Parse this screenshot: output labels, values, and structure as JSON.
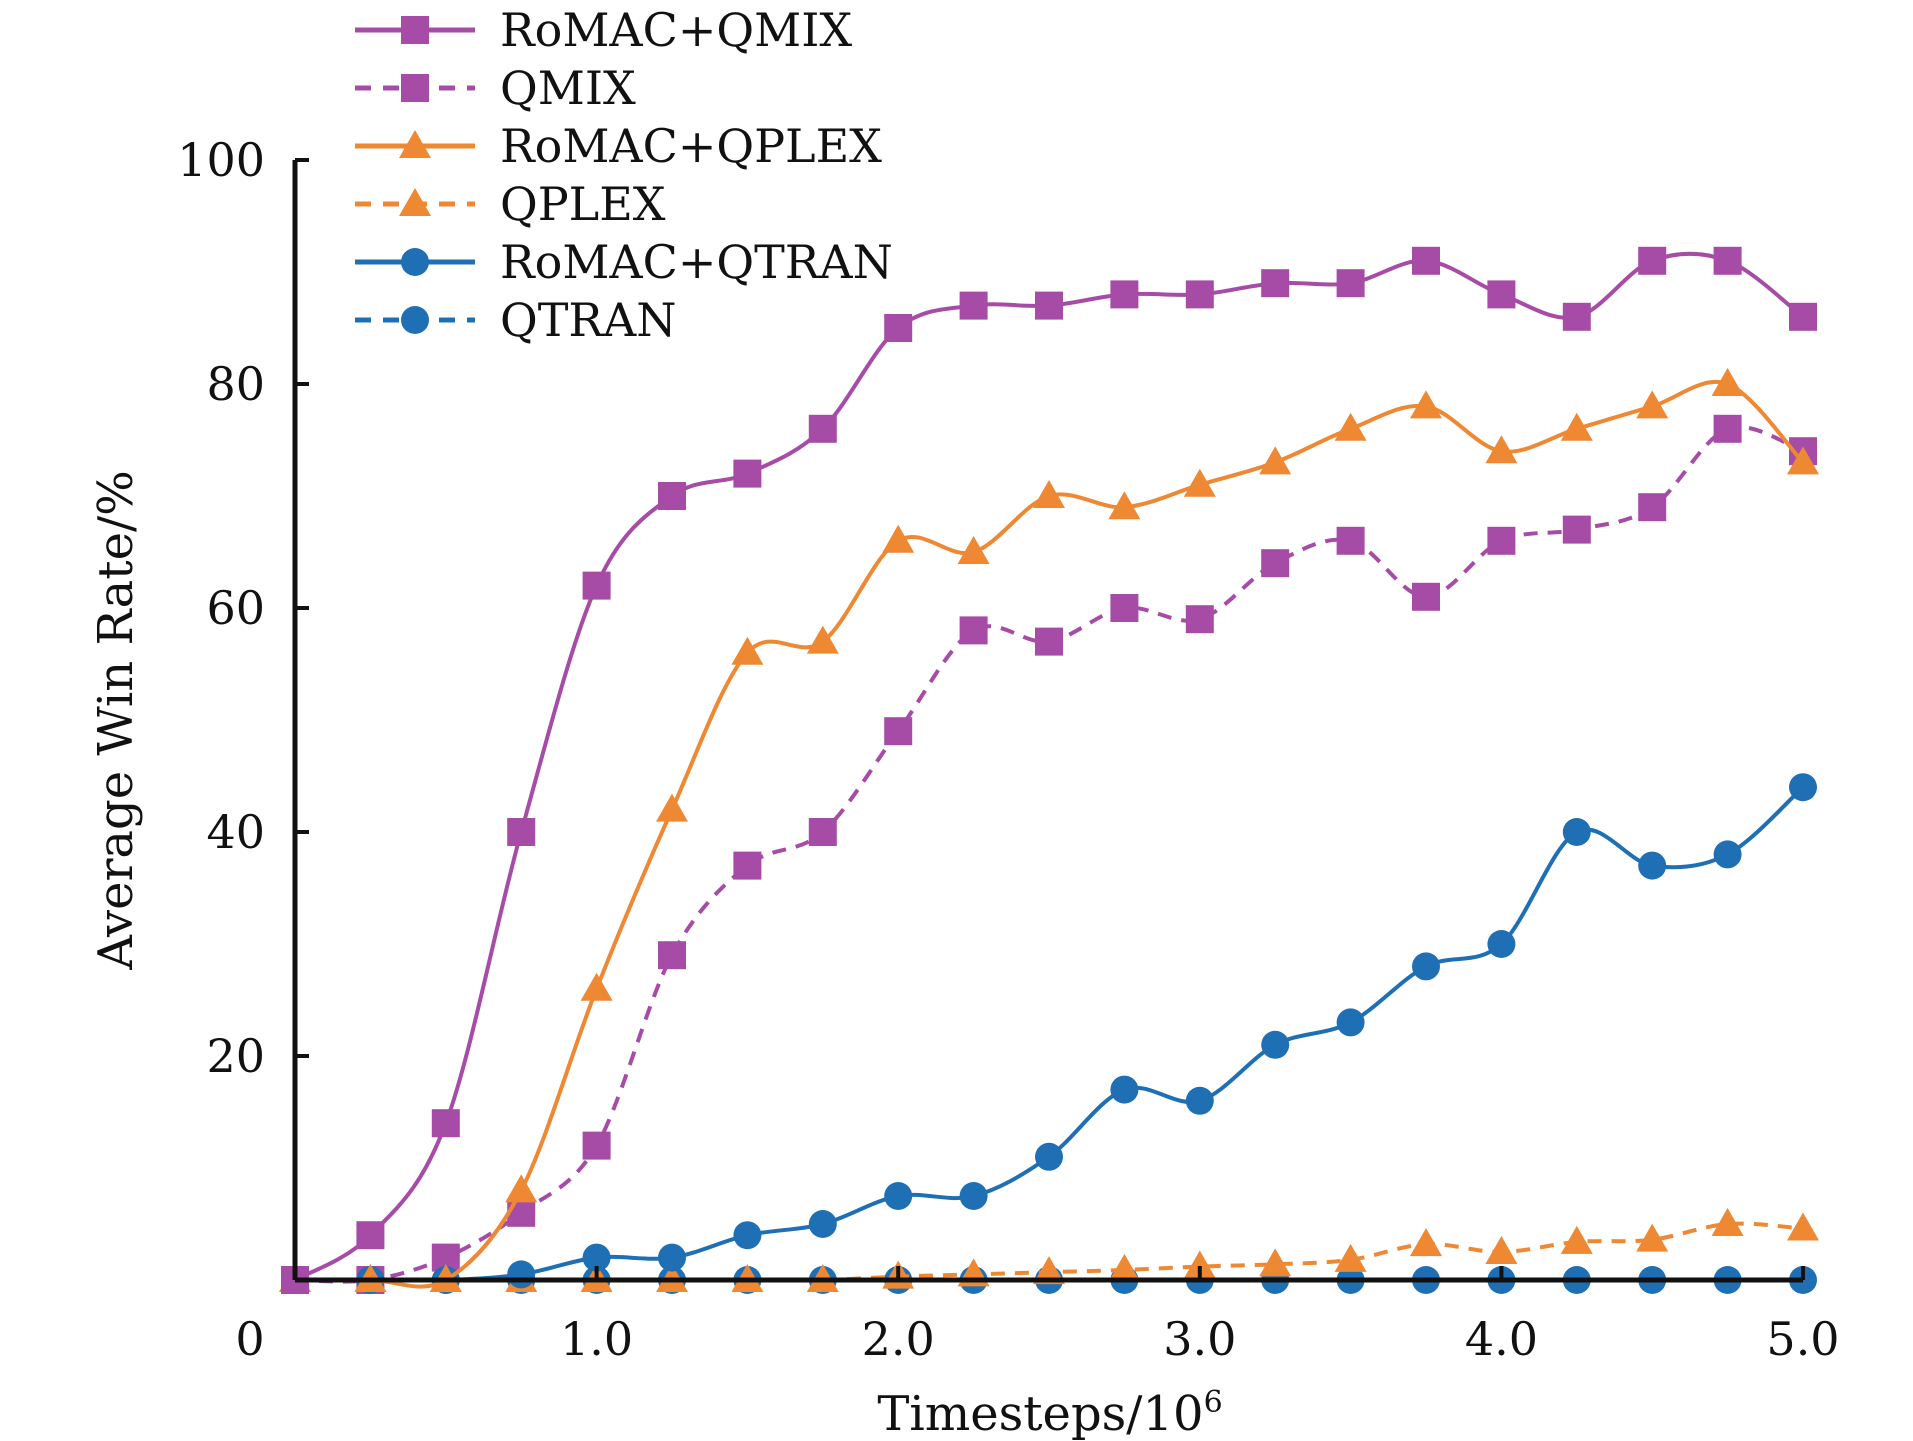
{
  "chart_data": {
    "type": "line",
    "xlabel": "Timesteps/10",
    "xlabel_sup": "6",
    "ylabel": "Average Win Rate/%",
    "xlim": [
      0,
      5.0
    ],
    "ylim": [
      0,
      100
    ],
    "x_ticks": [
      0,
      1.0,
      2.0,
      3.0,
      4.0,
      5.0
    ],
    "x_tick_labels": [
      "0",
      "1.0",
      "2.0",
      "3.0",
      "4.0",
      "5.0"
    ],
    "y_ticks": [
      20,
      40,
      60,
      80,
      100
    ],
    "y_tick_labels": [
      "20",
      "40",
      "60",
      "80",
      "100"
    ],
    "grid": false,
    "legend_position": "top-left, above plot",
    "series": [
      {
        "name": "RoMAC+QMIX",
        "color": "#A64CA6",
        "marker": "square",
        "line": "solid",
        "x": [
          0.0,
          0.25,
          0.5,
          0.75,
          1.0,
          1.25,
          1.5,
          1.75,
          2.0,
          2.25,
          2.5,
          2.75,
          3.0,
          3.25,
          3.5,
          3.75,
          4.0,
          4.25,
          4.5,
          4.75,
          5.0
        ],
        "y": [
          0,
          4,
          14,
          40,
          62,
          70,
          72,
          76,
          85,
          87,
          87,
          88,
          88,
          89,
          89,
          91,
          88,
          86,
          91,
          91,
          86
        ]
      },
      {
        "name": "QMIX",
        "color": "#A64CA6",
        "marker": "square",
        "line": "dashed",
        "x": [
          0.0,
          0.25,
          0.5,
          0.75,
          1.0,
          1.25,
          1.5,
          1.75,
          2.0,
          2.25,
          2.5,
          2.75,
          3.0,
          3.25,
          3.5,
          3.75,
          4.0,
          4.25,
          4.5,
          4.75,
          5.0
        ],
        "y": [
          0,
          0,
          2,
          6,
          12,
          29,
          37,
          40,
          49,
          58,
          57,
          60,
          59,
          64,
          66,
          61,
          66,
          67,
          69,
          76,
          74
        ]
      },
      {
        "name": "RoMAC+QPLEX",
        "color": "#EE8833",
        "marker": "triangle",
        "line": "solid",
        "x": [
          0.0,
          0.25,
          0.5,
          0.75,
          1.0,
          1.25,
          1.5,
          1.75,
          2.0,
          2.25,
          2.5,
          2.75,
          3.0,
          3.25,
          3.5,
          3.75,
          4.0,
          4.25,
          4.5,
          4.75,
          5.0
        ],
        "y": [
          0,
          0,
          0,
          8,
          26,
          42,
          56,
          57,
          66,
          65,
          70,
          69,
          71,
          73,
          76,
          78,
          74,
          76,
          78,
          80,
          73
        ]
      },
      {
        "name": "QPLEX",
        "color": "#EE8833",
        "marker": "triangle",
        "line": "dashed",
        "x": [
          0.0,
          0.25,
          0.5,
          0.75,
          1.0,
          1.25,
          1.5,
          1.75,
          2.0,
          2.25,
          2.5,
          2.75,
          3.0,
          3.25,
          3.5,
          3.75,
          4.0,
          4.25,
          4.5,
          4.75,
          5.0
        ],
        "y": [
          0,
          0,
          0,
          0,
          0,
          0,
          0,
          0,
          0.3,
          0.5,
          0.7,
          0.9,
          1.2,
          1.4,
          1.8,
          3.2,
          2.5,
          3.4,
          3.6,
          5,
          4.6
        ]
      },
      {
        "name": "RoMAC+QTRAN",
        "color": "#1F6FB4",
        "marker": "circle",
        "line": "solid",
        "x": [
          0.0,
          0.25,
          0.5,
          0.75,
          1.0,
          1.25,
          1.5,
          1.75,
          2.0,
          2.25,
          2.5,
          2.75,
          3.0,
          3.25,
          3.5,
          3.75,
          4.0,
          4.25,
          4.5,
          4.75,
          5.0
        ],
        "y": [
          0,
          0,
          0,
          0.5,
          2,
          2,
          4,
          5,
          7.5,
          7.5,
          11,
          17,
          16,
          21,
          23,
          28,
          30,
          40,
          37,
          38,
          44
        ]
      },
      {
        "name": "QTRAN",
        "color": "#1F6FB4",
        "marker": "circle",
        "line": "dashed",
        "x": [
          0.0,
          0.25,
          0.5,
          0.75,
          1.0,
          1.25,
          1.5,
          1.75,
          2.0,
          2.25,
          2.5,
          2.75,
          3.0,
          3.25,
          3.5,
          3.75,
          4.0,
          4.25,
          4.5,
          4.75,
          5.0
        ],
        "y": [
          0,
          0,
          0,
          0,
          0,
          0,
          0,
          0,
          0,
          0,
          0,
          0,
          0,
          0,
          0,
          0,
          0,
          0,
          0,
          0,
          0
        ]
      }
    ]
  }
}
